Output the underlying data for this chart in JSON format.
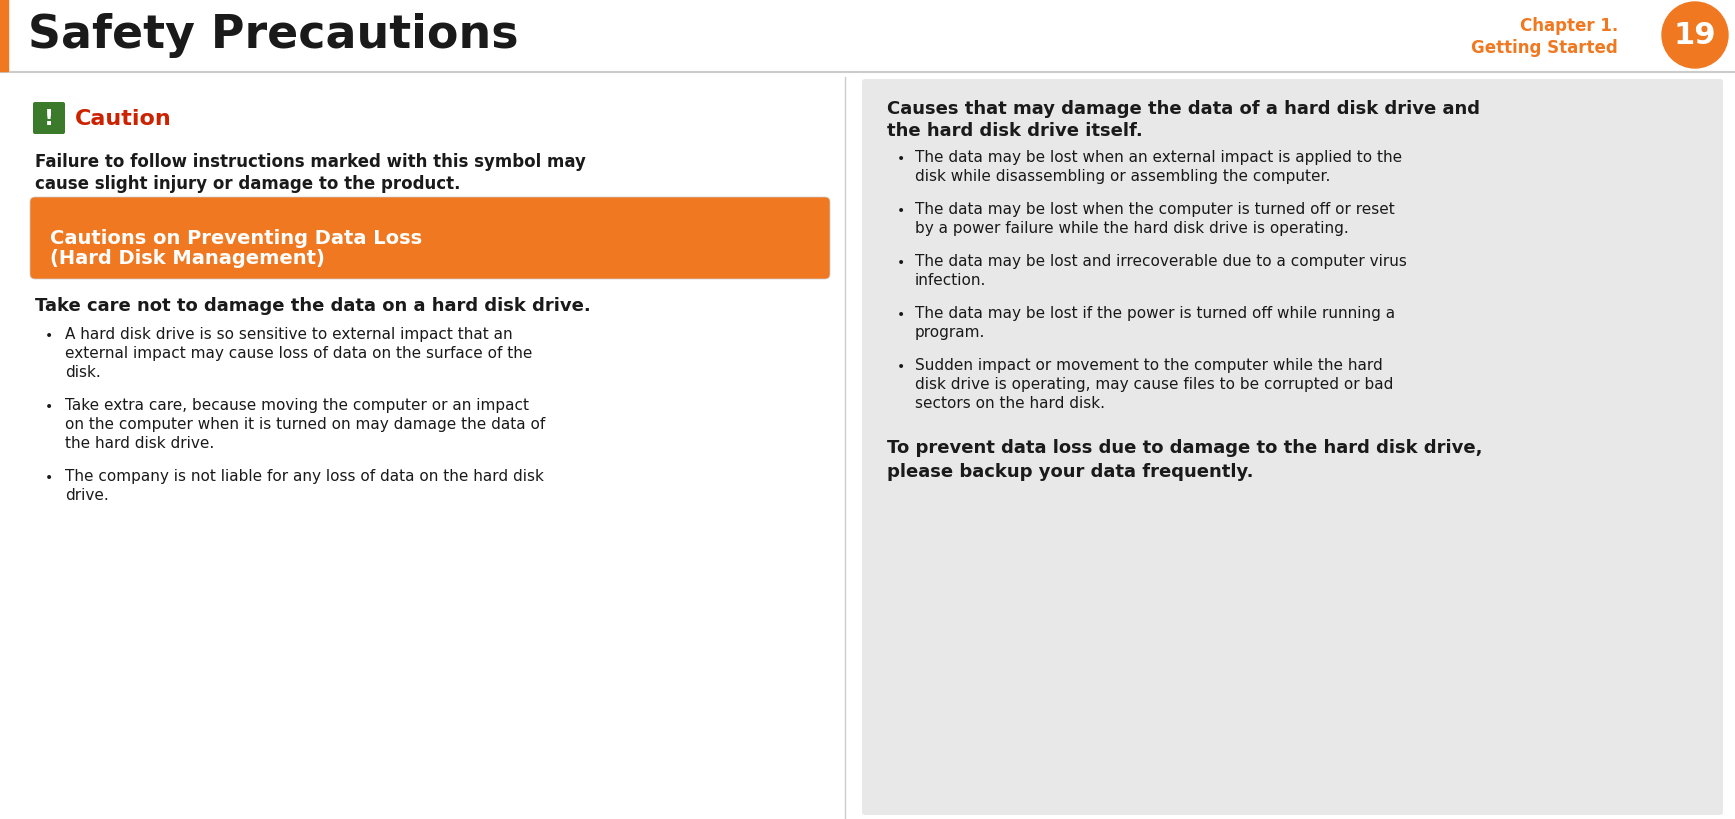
{
  "bg_color": "#ffffff",
  "orange_color": "#f07820",
  "dark_text": "#1a1a1a",
  "gray_box_color": "#e8e8e8",
  "title": "Safety Precautions",
  "page_number": "19",
  "orange_box_title_line1": "Cautions on Preventing Data Loss",
  "orange_box_title_line2": "(Hard Disk Management)",
  "caution_label": "Caution",
  "caution_text_line1": "Failure to follow instructions marked with this symbol may",
  "caution_text_line2": "cause slight injury or damage to the product.",
  "left_subtitle": "Take care not to damage the data on a hard disk drive.",
  "left_bullets": [
    "A hard disk drive is so sensitive to external impact that an\nexternal impact may cause loss of data on the surface of the\ndisk.",
    "Take extra care, because moving the computer or an impact\non the computer when it is turned on may damage the data of\nthe hard disk drive.",
    "The company is not liable for any loss of data on the hard disk\ndrive."
  ],
  "right_title_line1": "Causes that may damage the data of a hard disk drive and",
  "right_title_line2": "the hard disk drive itself.",
  "right_bullets": [
    "The data may be lost when an external impact is applied to the\ndisk while disassembling or assembling the computer.",
    "The data may be lost when the computer is turned off or reset\nby a power failure while the hard disk drive is operating.",
    "The data may be lost and irrecoverable due to a computer virus\ninfection.",
    "The data may be lost if the power is turned off while running a\nprogram.",
    "Sudden impact or movement to the computer while the hard\ndisk drive is operating, may cause files to be corrupted or bad\nsectors on the hard disk."
  ],
  "right_footer_line1": "To prevent data loss due to damage to the hard disk drive,",
  "right_footer_line2": "please backup your data frequently.",
  "divider_color": "#cccccc",
  "bullet_char": "•"
}
